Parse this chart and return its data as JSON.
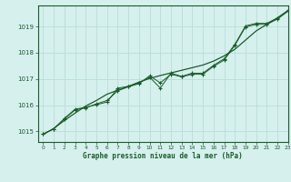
{
  "title": "Graphe pression niveau de la mer (hPa)",
  "bg_color": "#d6f0ee",
  "grid_color": "#b8ddd8",
  "line_color": "#1a5c2a",
  "xlim": [
    -0.5,
    23
  ],
  "ylim": [
    1014.6,
    1019.8
  ],
  "yticks": [
    1015,
    1016,
    1017,
    1018,
    1019
  ],
  "xticks": [
    0,
    1,
    2,
    3,
    4,
    5,
    6,
    7,
    8,
    9,
    10,
    11,
    12,
    13,
    14,
    15,
    16,
    17,
    18,
    19,
    20,
    21,
    22,
    23
  ],
  "series1": [
    1014.9,
    1015.1,
    1015.5,
    1015.85,
    1015.92,
    1016.02,
    1016.12,
    1016.65,
    1016.72,
    1016.85,
    1017.07,
    1016.65,
    1017.22,
    1017.1,
    1017.22,
    1017.22,
    1017.52,
    1017.77,
    1018.32,
    1019.02,
    1019.12,
    1019.12,
    1019.32,
    1019.62
  ],
  "series2": [
    1014.9,
    1015.1,
    1015.48,
    1015.82,
    1015.9,
    1016.05,
    1016.18,
    1016.55,
    1016.7,
    1016.82,
    1017.12,
    1016.85,
    1017.18,
    1017.08,
    1017.18,
    1017.18,
    1017.48,
    1017.72,
    1018.28,
    1018.98,
    1019.08,
    1019.08,
    1019.28,
    1019.58
  ],
  "series_smooth": [
    1014.88,
    1015.12,
    1015.42,
    1015.7,
    1015.97,
    1016.18,
    1016.42,
    1016.57,
    1016.72,
    1016.88,
    1017.02,
    1017.13,
    1017.23,
    1017.33,
    1017.43,
    1017.53,
    1017.68,
    1017.88,
    1018.13,
    1018.48,
    1018.83,
    1019.08,
    1019.33,
    1019.6
  ]
}
